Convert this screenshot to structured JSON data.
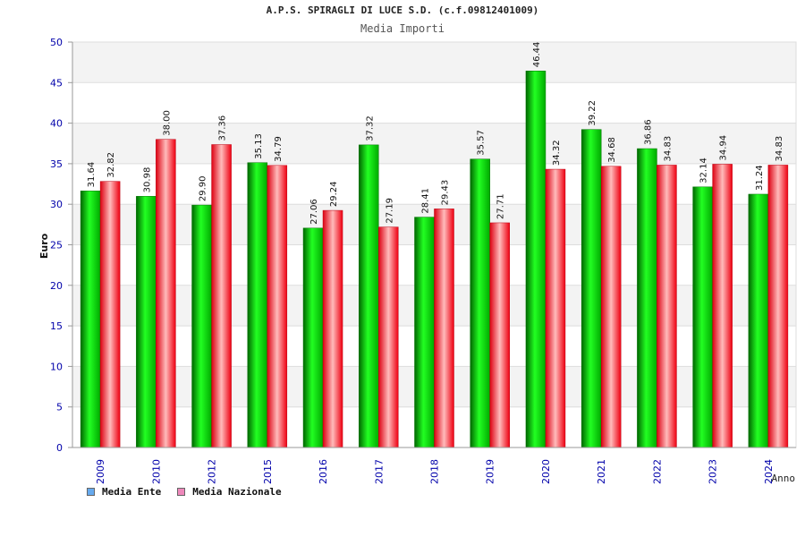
{
  "chart_data": {
    "type": "bar",
    "title": "A.P.S. SPIRAGLI DI LUCE S.D. (c.f.09812401009)",
    "subtitle": "Media Importi",
    "xlabel": "Anno",
    "ylabel": "Euro",
    "ylim": [
      0,
      50
    ],
    "yticks": [
      "0",
      "5",
      "10",
      "15",
      "20",
      "25",
      "30",
      "35",
      "40",
      "45",
      "50"
    ],
    "grid": true,
    "legend_position": "bottom-left",
    "categories": [
      "2009",
      "2010",
      "2012",
      "2015",
      "2016",
      "2017",
      "2018",
      "2019",
      "2020",
      "2021",
      "2022",
      "2023",
      "2024"
    ],
    "series": [
      {
        "name": "Media Ente",
        "color": "#00cc00",
        "legend_color": "#66aaee",
        "values": [
          31.64,
          30.98,
          29.9,
          35.13,
          27.06,
          37.32,
          28.41,
          35.57,
          46.44,
          39.22,
          36.86,
          32.14,
          31.24
        ],
        "labels": [
          "31.64",
          "30.98",
          "29.90",
          "35.13",
          "27.06",
          "37.32",
          "28.41",
          "35.57",
          "46.44",
          "39.22",
          "36.86",
          "32.14",
          "31.24"
        ]
      },
      {
        "name": "Media Nazionale",
        "color": "#ee1122",
        "legend_color": "#ee88bb",
        "values": [
          32.82,
          38.0,
          37.36,
          34.79,
          29.24,
          27.19,
          29.43,
          27.71,
          34.32,
          34.68,
          34.83,
          34.94,
          34.83
        ],
        "labels": [
          "32.82",
          "38.00",
          "37.36",
          "34.79",
          "29.24",
          "27.19",
          "29.43",
          "27.71",
          "34.32",
          "34.68",
          "34.83",
          "34.94",
          "34.83"
        ]
      }
    ]
  }
}
